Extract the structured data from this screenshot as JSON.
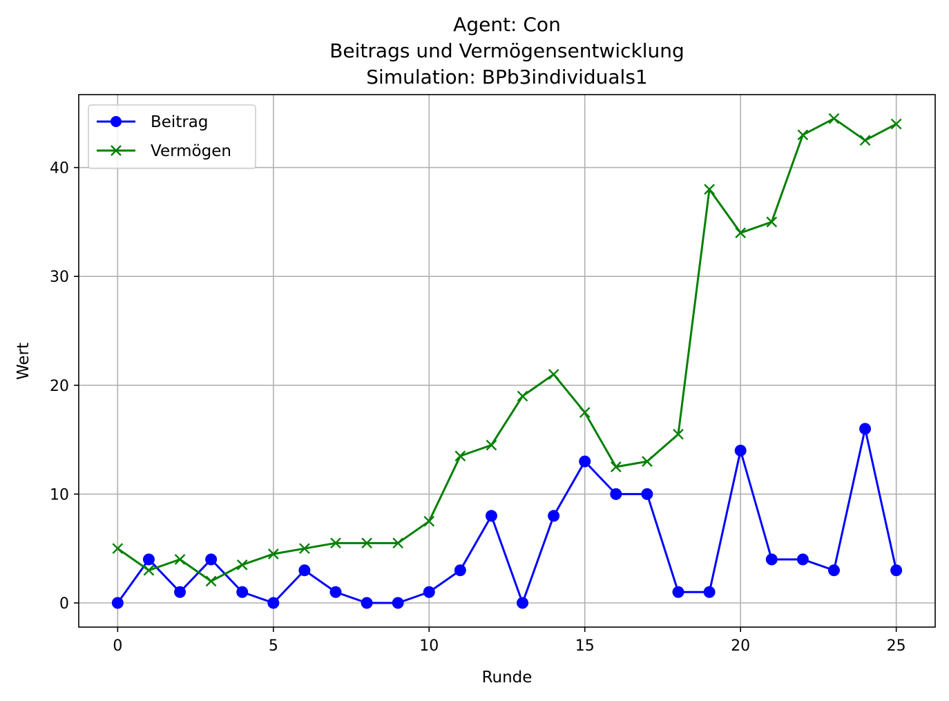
{
  "chart_data": {
    "type": "line",
    "title_lines": [
      "Agent: Con",
      "Beitrags und Vermögensentwicklung",
      "Simulation: BPb3individuals1"
    ],
    "xlabel": "Runde",
    "ylabel": "Wert",
    "xlim": [
      -1.25,
      26.25
    ],
    "ylim": [
      -2.22,
      46.7
    ],
    "xticks": [
      0,
      5,
      10,
      15,
      20,
      25
    ],
    "yticks": [
      0,
      10,
      20,
      30,
      40
    ],
    "grid": true,
    "legend_position": "top-left",
    "x": [
      0,
      1,
      2,
      3,
      4,
      5,
      6,
      7,
      8,
      9,
      10,
      11,
      12,
      13,
      14,
      15,
      16,
      17,
      18,
      19,
      20,
      21,
      22,
      23,
      24,
      25
    ],
    "series": [
      {
        "name": "Beitrag",
        "color": "#0000ff",
        "marker": "circle",
        "values": [
          0,
          4,
          1,
          4,
          1,
          0,
          3,
          1,
          0,
          0,
          1,
          3,
          8,
          0,
          8,
          13,
          10,
          10,
          1,
          1,
          14,
          4,
          4,
          3,
          16,
          3
        ]
      },
      {
        "name": "Vermögen",
        "color": "#008000",
        "marker": "x",
        "values": [
          5,
          3,
          4,
          2,
          3.5,
          4.5,
          5,
          5.5,
          5.5,
          5.5,
          7.5,
          13.5,
          14.5,
          19,
          21,
          17.5,
          12.5,
          13,
          15.5,
          38,
          34,
          35,
          43,
          44.5,
          42.5,
          44
        ]
      }
    ]
  }
}
